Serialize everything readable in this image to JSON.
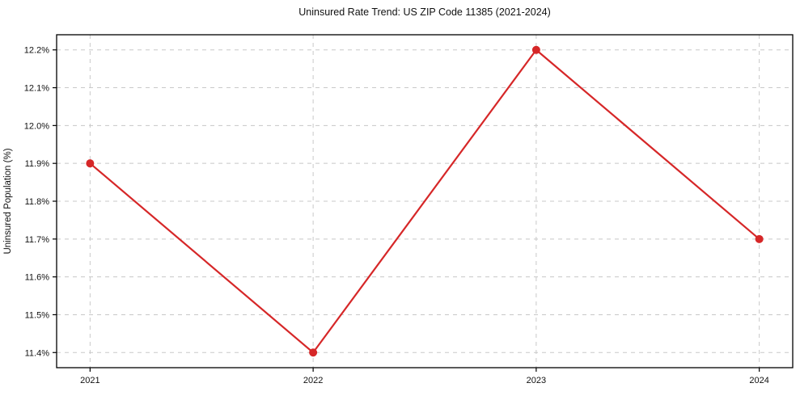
{
  "chart_data": {
    "type": "line",
    "title": "Uninsured Rate Trend: US ZIP Code 11385 (2021-2024)",
    "xlabel": "",
    "ylabel": "Uninsured Population (%)",
    "x": [
      2021,
      2022,
      2023,
      2024
    ],
    "values": [
      11.9,
      11.4,
      12.2,
      11.7
    ],
    "xtick_labels": [
      "2021",
      "2022",
      "2023",
      "2024"
    ],
    "ytick_values": [
      11.4,
      11.5,
      11.6,
      11.7,
      11.8,
      11.9,
      12.0,
      12.1,
      12.2
    ],
    "ytick_labels": [
      "11.4%",
      "11.5%",
      "11.6%",
      "11.7%",
      "11.8%",
      "11.9%",
      "12.0%",
      "12.1%",
      "12.2%"
    ],
    "xlim": [
      2020.85,
      2024.15
    ],
    "ylim": [
      11.36,
      12.24
    ],
    "grid": true,
    "legend": "none",
    "colors": {
      "line": "#d62728",
      "marker": "#d62728",
      "grid": "#c8c8c8",
      "border": "#000000",
      "background": "#ffffff"
    }
  }
}
